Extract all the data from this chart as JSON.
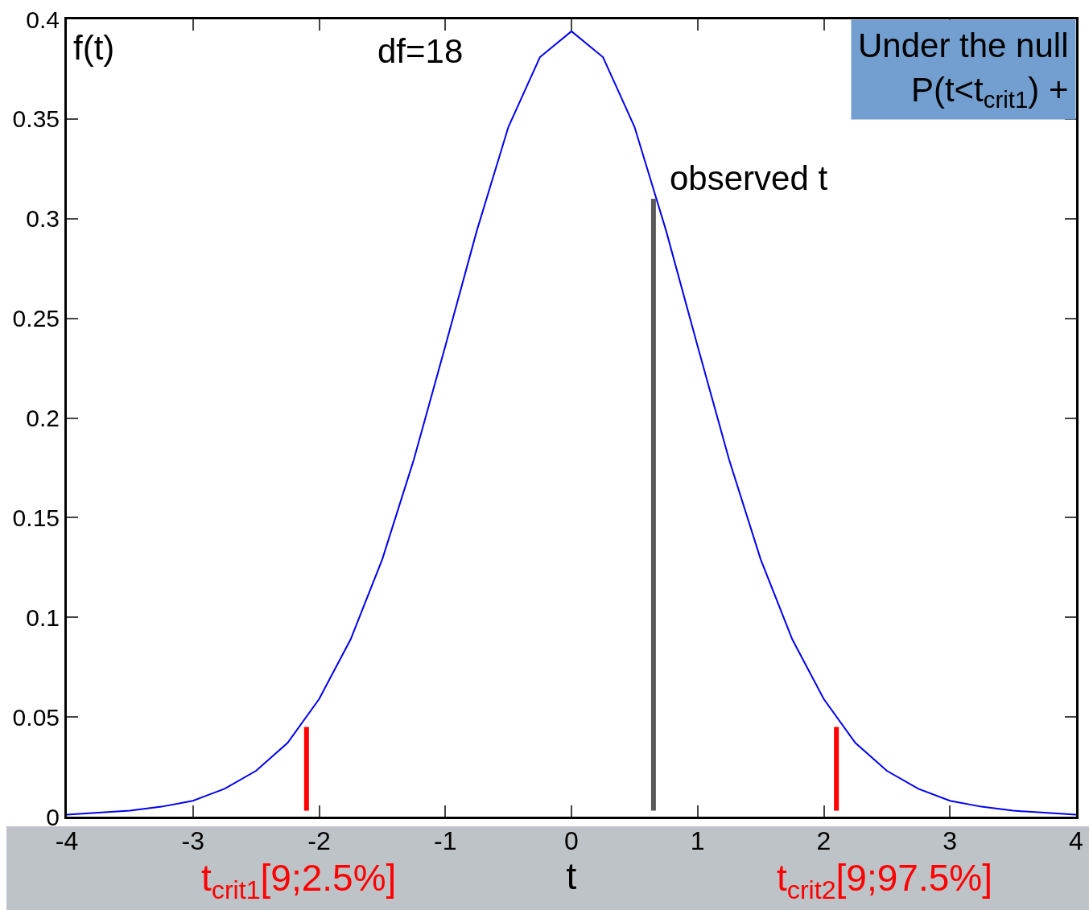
{
  "chart_data": {
    "type": "line",
    "xlabel": "t",
    "ylabel": "f(t)",
    "annotations": [
      "df=18",
      "Under the null\nP(t<t$_{crit1}$) +",
      {
        "text": "observed t",
        "x": 0.65,
        "y": 0.31
      },
      "t$_{crit1}$[9;2.5%]",
      "t$_{crit2}$[9;97.5%]"
    ],
    "series": [
      {
        "color": "#0000ee",
        "x": [
          -4,
          -3.75,
          -3.5,
          -3.25,
          -3,
          -2.75,
          -2.5,
          -2.25,
          -2,
          -1.75,
          -1.5,
          -1.25,
          -1,
          -0.75,
          -0.5,
          -0.25,
          0,
          0.25,
          0.5,
          0.75,
          1,
          1.25,
          1.5,
          1.75,
          2,
          2.25,
          2.5,
          2.75,
          3,
          3.25,
          3.5,
          3.75,
          4
        ],
        "values": [
          0.001,
          0.002,
          0.003,
          0.005,
          0.008,
          0.014,
          0.023,
          0.037,
          0.059,
          0.089,
          0.129,
          0.179,
          0.236,
          0.294,
          0.346,
          0.381,
          0.394,
          0.381,
          0.346,
          0.294,
          0.236,
          0.179,
          0.129,
          0.089,
          0.059,
          0.037,
          0.023,
          0.014,
          0.008,
          0.005,
          0.003,
          0.002,
          0.001
        ]
      },
      {
        "color": "#ff0000",
        "x": [
          -2.1,
          -2.1
        ],
        "values": [
          0.003,
          0.045
        ]
      },
      {
        "color": "#ff0000",
        "x": [
          2.1,
          2.1
        ],
        "values": [
          0.003,
          0.045
        ]
      },
      {
        "color": "#595959",
        "x": [
          0.65,
          0.65
        ],
        "values": [
          0.003,
          0.31
        ]
      }
    ],
    "xlim": [
      -4,
      4
    ],
    "xticks": [
      -4,
      -3,
      -2,
      -1,
      0,
      1,
      2,
      3,
      4
    ],
    "ylim": [
      0,
      0.4
    ],
    "yticks": [
      0,
      0.05,
      0.1,
      0.15,
      0.2,
      0.25,
      0.3,
      0.35,
      0.4
    ],
    "grid": false,
    "marker": "none",
    "line_style": "solid"
  }
}
